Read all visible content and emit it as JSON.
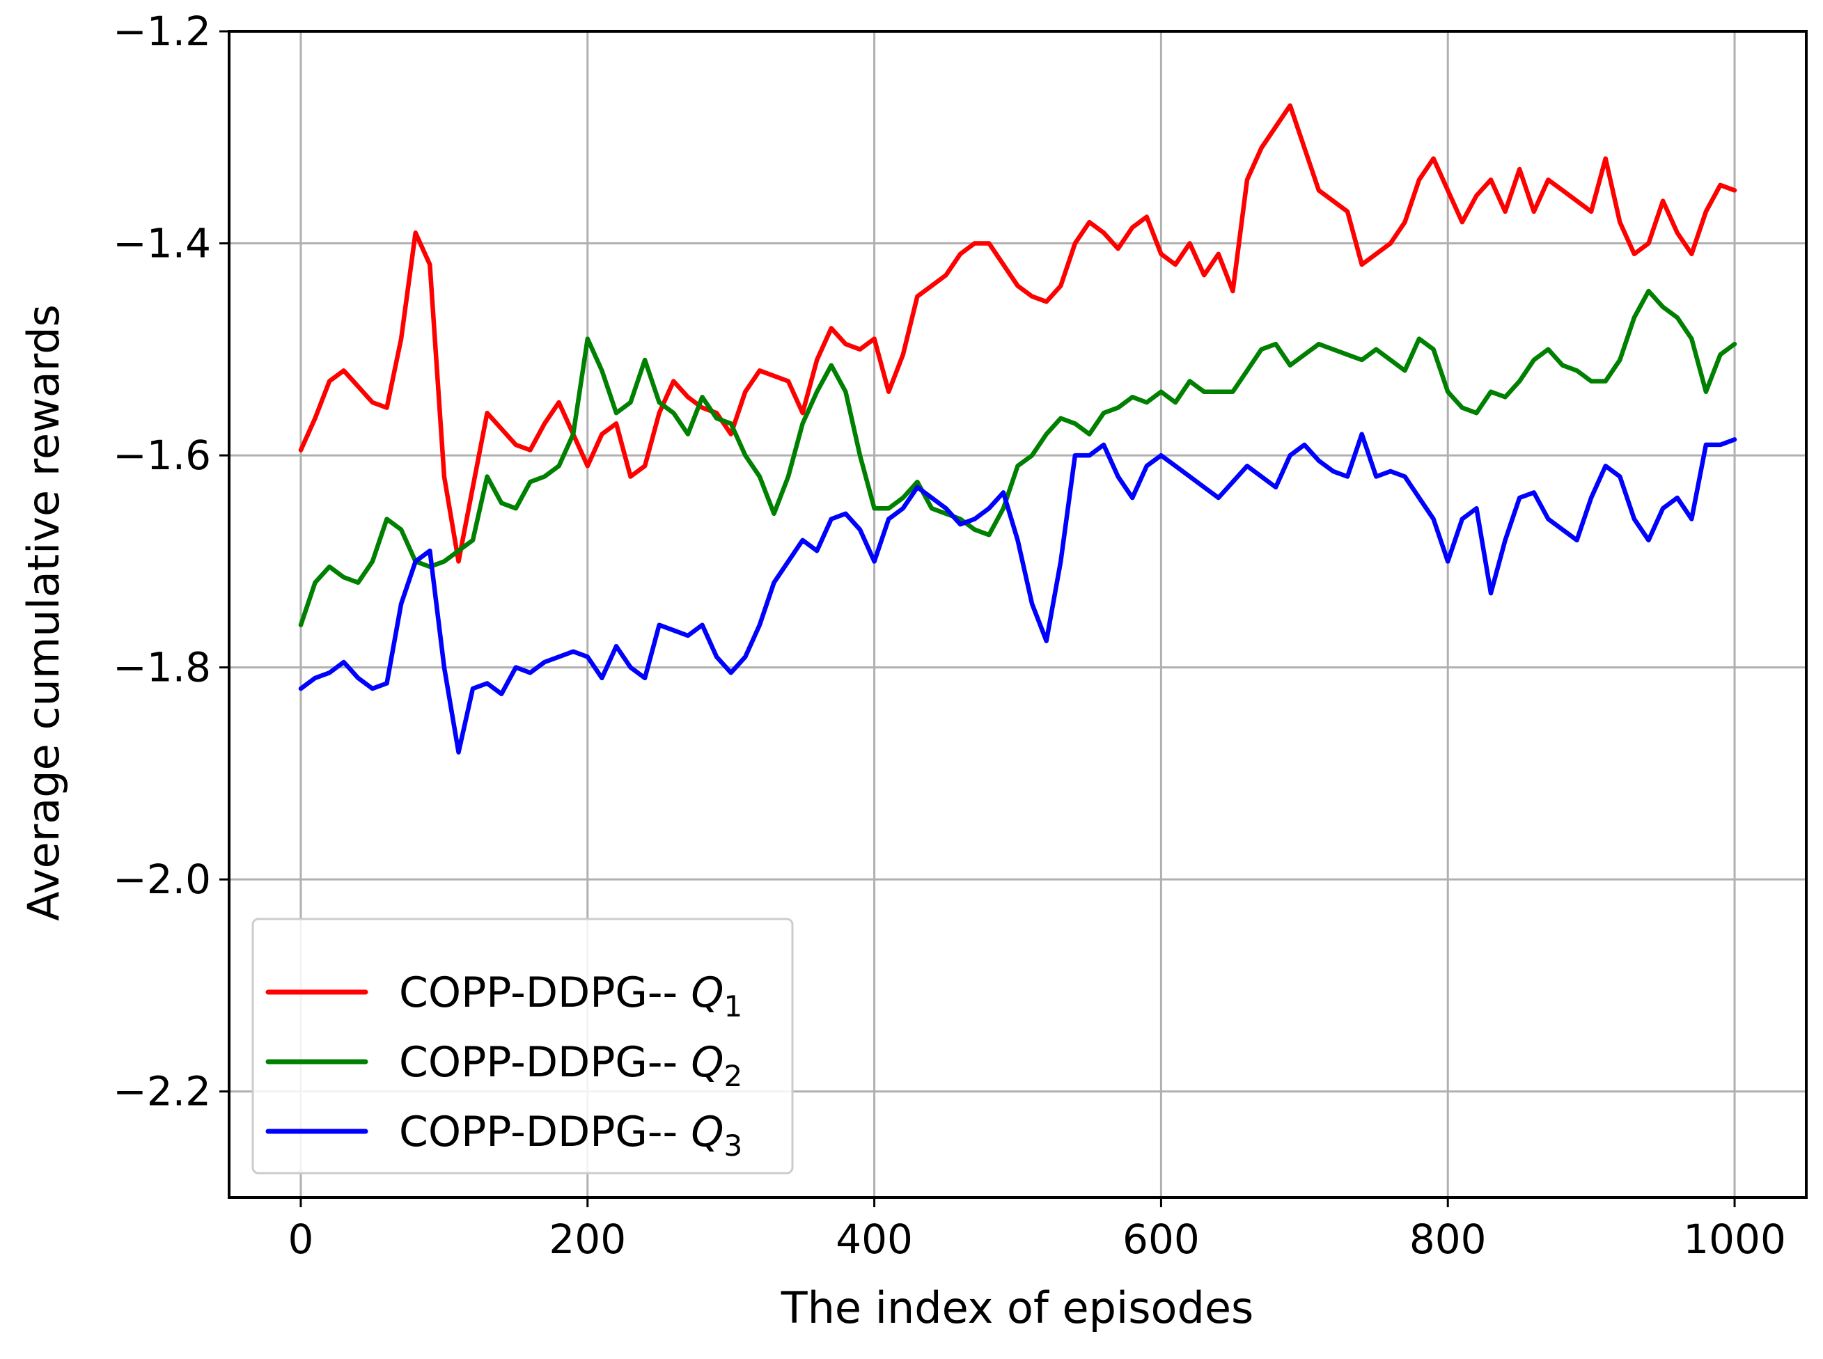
{
  "chart_data": {
    "type": "line",
    "title": "",
    "xlabel": "The index of episodes",
    "ylabel": "Average cumulative rewards",
    "xlim": [
      -50,
      1050
    ],
    "ylim": [
      -2.3,
      -1.2
    ],
    "xticks": [
      0,
      200,
      400,
      600,
      800,
      1000
    ],
    "yticks": [
      -2.2,
      -2.0,
      -1.8,
      -1.6,
      -1.4,
      -1.2
    ],
    "xtick_labels": [
      "0",
      "200",
      "400",
      "600",
      "800",
      "1000"
    ],
    "ytick_labels": [
      "−2.2",
      "−2.0",
      "−1.8",
      "−1.6",
      "−1.4",
      "−1.2"
    ],
    "grid": true,
    "legend_position": "lower-left",
    "x": [
      0,
      10,
      20,
      30,
      40,
      50,
      60,
      70,
      80,
      90,
      100,
      110,
      120,
      130,
      140,
      150,
      160,
      170,
      180,
      190,
      200,
      210,
      220,
      230,
      240,
      250,
      260,
      270,
      280,
      290,
      300,
      310,
      320,
      330,
      340,
      350,
      360,
      370,
      380,
      390,
      400,
      410,
      420,
      430,
      440,
      450,
      460,
      470,
      480,
      490,
      500,
      510,
      520,
      530,
      540,
      550,
      560,
      570,
      580,
      590,
      600,
      610,
      620,
      630,
      640,
      650,
      660,
      670,
      680,
      690,
      700,
      710,
      720,
      730,
      740,
      750,
      760,
      770,
      780,
      790,
      800,
      810,
      820,
      830,
      840,
      850,
      860,
      870,
      880,
      890,
      900,
      910,
      920,
      930,
      940,
      950,
      960,
      970,
      980,
      990,
      1000
    ],
    "series": [
      {
        "name": "COPP-DDPG-- Q1",
        "legend_label": "COPP-DDPG-- ",
        "legend_q": "Q",
        "legend_sub": "1",
        "color": "#ff0000",
        "values": [
          -1.595,
          -1.565,
          -1.53,
          -1.52,
          -1.535,
          -1.55,
          -1.555,
          -1.49,
          -1.39,
          -1.42,
          -1.62,
          -1.7,
          -1.63,
          -1.56,
          -1.575,
          -1.59,
          -1.595,
          -1.57,
          -1.55,
          -1.58,
          -1.61,
          -1.58,
          -1.57,
          -1.62,
          -1.61,
          -1.56,
          -1.53,
          -1.545,
          -1.555,
          -1.56,
          -1.58,
          -1.54,
          -1.52,
          -1.525,
          -1.53,
          -1.56,
          -1.51,
          -1.48,
          -1.495,
          -1.5,
          -1.49,
          -1.54,
          -1.505,
          -1.45,
          -1.44,
          -1.43,
          -1.41,
          -1.4,
          -1.4,
          -1.42,
          -1.44,
          -1.45,
          -1.455,
          -1.44,
          -1.4,
          -1.38,
          -1.39,
          -1.405,
          -1.385,
          -1.375,
          -1.41,
          -1.42,
          -1.4,
          -1.43,
          -1.41,
          -1.445,
          -1.34,
          -1.31,
          -1.29,
          -1.27,
          -1.31,
          -1.35,
          -1.36,
          -1.37,
          -1.42,
          -1.41,
          -1.4,
          -1.38,
          -1.34,
          -1.32,
          -1.35,
          -1.38,
          -1.355,
          -1.34,
          -1.37,
          -1.33,
          -1.37,
          -1.34,
          -1.35,
          -1.36,
          -1.37,
          -1.32,
          -1.38,
          -1.41,
          -1.4,
          -1.36,
          -1.39,
          -1.41,
          -1.37,
          -1.345,
          -1.35
        ]
      },
      {
        "name": "COPP-DDPG-- Q2",
        "legend_label": "COPP-DDPG-- ",
        "legend_q": "Q",
        "legend_sub": "2",
        "color": "#008000",
        "values": [
          -1.76,
          -1.72,
          -1.705,
          -1.715,
          -1.72,
          -1.7,
          -1.66,
          -1.67,
          -1.7,
          -1.705,
          -1.7,
          -1.69,
          -1.68,
          -1.62,
          -1.645,
          -1.65,
          -1.625,
          -1.62,
          -1.61,
          -1.58,
          -1.49,
          -1.52,
          -1.56,
          -1.55,
          -1.51,
          -1.55,
          -1.56,
          -1.58,
          -1.545,
          -1.565,
          -1.57,
          -1.6,
          -1.62,
          -1.655,
          -1.62,
          -1.57,
          -1.54,
          -1.515,
          -1.54,
          -1.6,
          -1.65,
          -1.65,
          -1.64,
          -1.625,
          -1.65,
          -1.655,
          -1.66,
          -1.67,
          -1.675,
          -1.65,
          -1.61,
          -1.6,
          -1.58,
          -1.565,
          -1.57,
          -1.58,
          -1.56,
          -1.555,
          -1.545,
          -1.55,
          -1.54,
          -1.55,
          -1.53,
          -1.54,
          -1.54,
          -1.54,
          -1.52,
          -1.5,
          -1.495,
          -1.515,
          -1.505,
          -1.495,
          -1.5,
          -1.505,
          -1.51,
          -1.5,
          -1.51,
          -1.52,
          -1.49,
          -1.5,
          -1.54,
          -1.555,
          -1.56,
          -1.54,
          -1.545,
          -1.53,
          -1.51,
          -1.5,
          -1.515,
          -1.52,
          -1.53,
          -1.53,
          -1.51,
          -1.47,
          -1.445,
          -1.46,
          -1.47,
          -1.49,
          -1.54,
          -1.505,
          -1.495
        ]
      },
      {
        "name": "COPP-DDPG-- Q3",
        "legend_label": "COPP-DDPG-- ",
        "legend_q": "Q",
        "legend_sub": "3",
        "color": "#0000ff",
        "values": [
          -1.82,
          -1.81,
          -1.805,
          -1.795,
          -1.81,
          -1.82,
          -1.815,
          -1.74,
          -1.7,
          -1.69,
          -1.8,
          -1.88,
          -1.82,
          -1.815,
          -1.825,
          -1.8,
          -1.805,
          -1.795,
          -1.79,
          -1.785,
          -1.79,
          -1.81,
          -1.78,
          -1.8,
          -1.81,
          -1.76,
          -1.765,
          -1.77,
          -1.76,
          -1.79,
          -1.805,
          -1.79,
          -1.76,
          -1.72,
          -1.7,
          -1.68,
          -1.69,
          -1.66,
          -1.655,
          -1.67,
          -1.7,
          -1.66,
          -1.65,
          -1.63,
          -1.64,
          -1.65,
          -1.665,
          -1.66,
          -1.65,
          -1.635,
          -1.68,
          -1.74,
          -1.775,
          -1.7,
          -1.6,
          -1.6,
          -1.59,
          -1.62,
          -1.64,
          -1.61,
          -1.6,
          -1.61,
          -1.62,
          -1.63,
          -1.64,
          -1.625,
          -1.61,
          -1.62,
          -1.63,
          -1.6,
          -1.59,
          -1.605,
          -1.615,
          -1.62,
          -1.58,
          -1.62,
          -1.615,
          -1.62,
          -1.64,
          -1.66,
          -1.7,
          -1.66,
          -1.65,
          -1.73,
          -1.68,
          -1.64,
          -1.635,
          -1.66,
          -1.67,
          -1.68,
          -1.64,
          -1.61,
          -1.62,
          -1.66,
          -1.68,
          -1.65,
          -1.64,
          -1.66,
          -1.59,
          -1.59,
          -1.585
        ]
      }
    ]
  }
}
